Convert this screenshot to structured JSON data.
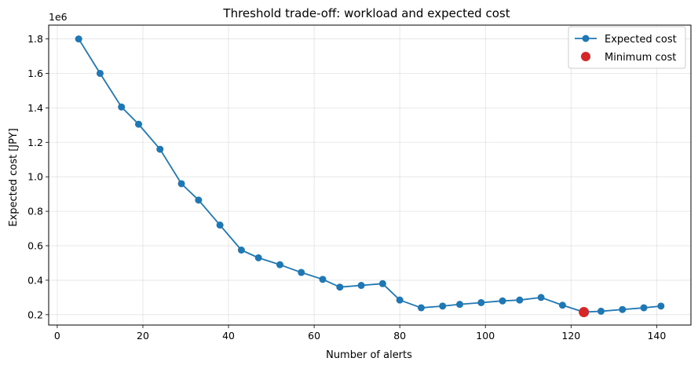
{
  "chart_data": {
    "type": "line",
    "title": "Threshold trade-off: workload and expected cost",
    "xlabel": "Number of alerts",
    "ylabel": "Expected cost [JPY]",
    "y_offset_label": "1e6",
    "xlim": [
      -2,
      148
    ],
    "ylim": [
      0.14,
      1.88
    ],
    "xticks": [
      0,
      20,
      40,
      60,
      80,
      100,
      120,
      140
    ],
    "yticks": [
      0.2,
      0.4,
      0.6,
      0.8,
      1.0,
      1.2,
      1.4,
      1.6,
      1.8
    ],
    "ytick_labels": [
      "0.2",
      "0.4",
      "0.6",
      "0.8",
      "1.0",
      "1.2",
      "1.4",
      "1.6",
      "1.8"
    ],
    "grid": true,
    "legend_position": "top-right",
    "series": [
      {
        "name": "Expected cost",
        "color": "#1f77b4",
        "x": [
          5,
          10,
          15,
          19,
          24,
          29,
          33,
          38,
          43,
          47,
          52,
          57,
          62,
          66,
          71,
          76,
          80,
          85,
          90,
          94,
          99,
          104,
          108,
          113,
          118,
          123,
          127,
          132,
          137,
          141
        ],
        "y": [
          1.8,
          1.6,
          1.405,
          1.305,
          1.16,
          0.96,
          0.865,
          0.72,
          0.575,
          0.53,
          0.49,
          0.445,
          0.405,
          0.36,
          0.37,
          0.38,
          0.285,
          0.24,
          0.25,
          0.26,
          0.27,
          0.28,
          0.285,
          0.3,
          0.255,
          0.215,
          0.22,
          0.23,
          0.24,
          0.25
        ]
      }
    ],
    "minimum": {
      "name": "Minimum cost",
      "color": "#d62728",
      "x": 123,
      "y": 0.215
    }
  }
}
